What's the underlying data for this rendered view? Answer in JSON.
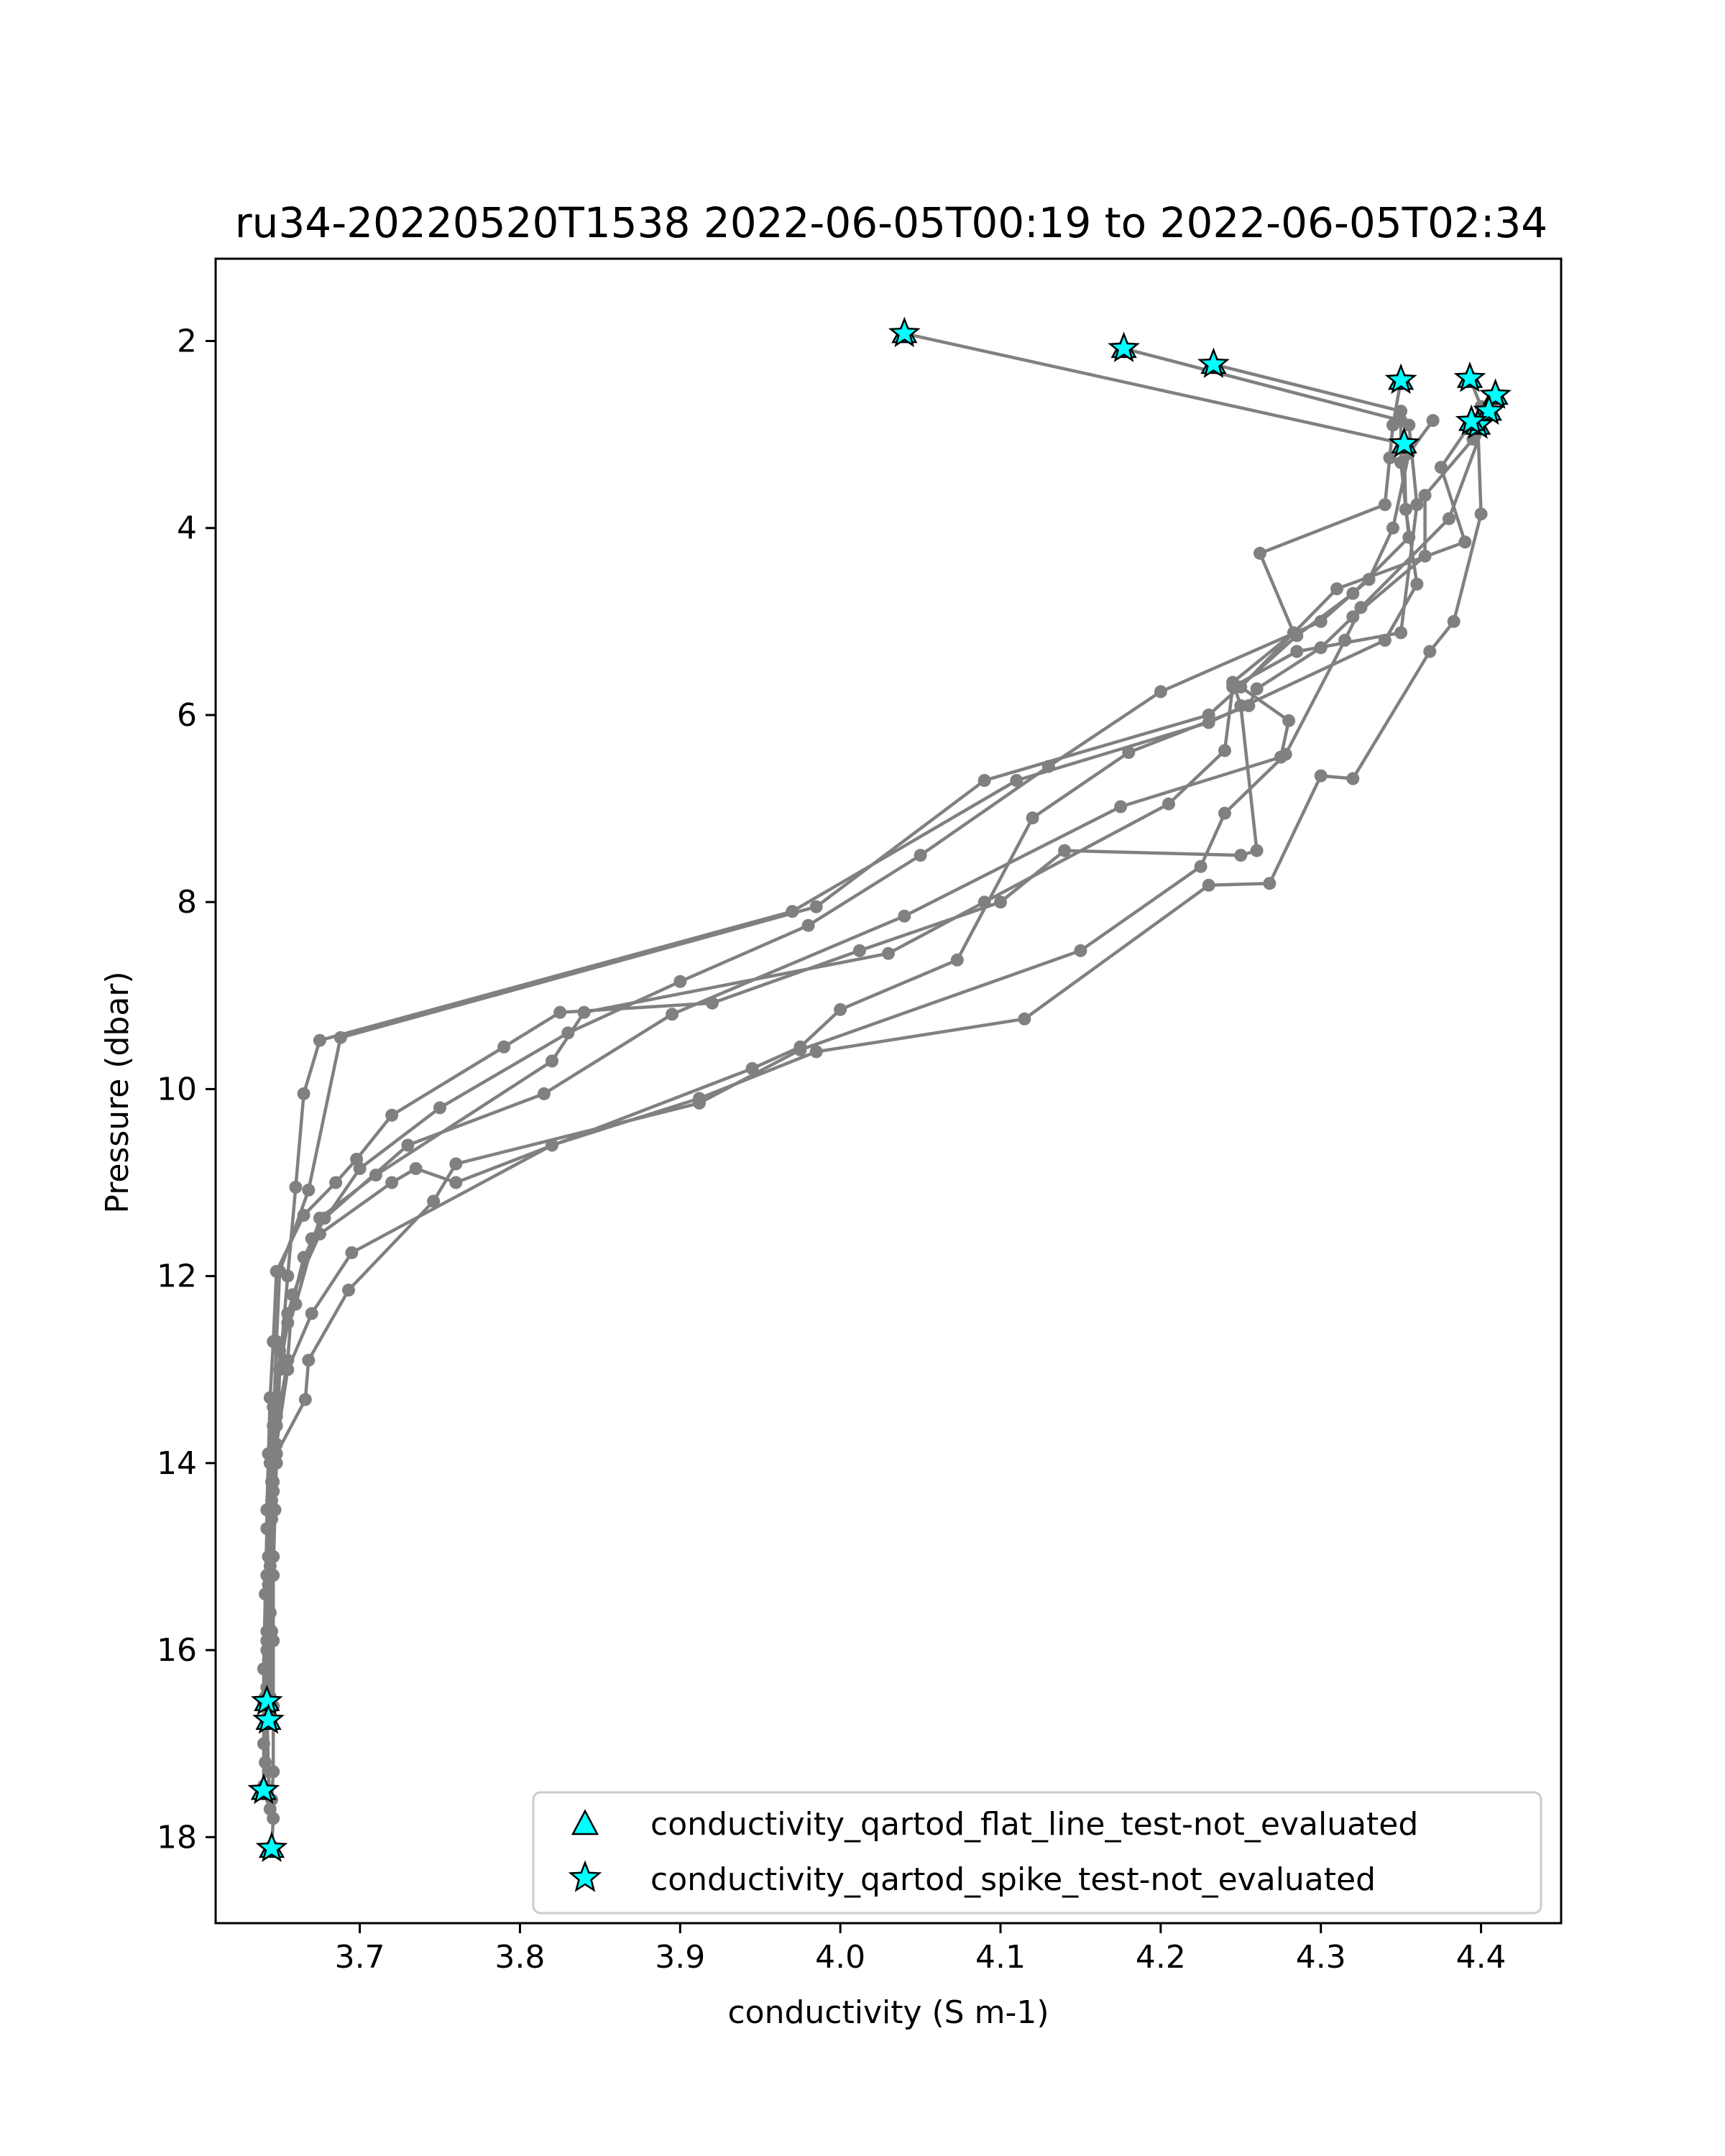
{
  "chart_data": {
    "type": "line",
    "title": "ru34-20220520T1538 2022-06-05T00:19 to 2022-06-05T02:34",
    "xlabel": "conductivity (S m-1)",
    "ylabel": "Pressure (dbar)",
    "xlim": [
      3.61,
      4.45
    ],
    "ylim": [
      18.92,
      1.12
    ],
    "y_inverted": true,
    "grid": false,
    "legend_position": "lower-right",
    "xticks": [
      3.7,
      3.8,
      3.9,
      4.0,
      4.1,
      4.2,
      4.3,
      4.4
    ],
    "xtick_labels": [
      "3.7",
      "3.8",
      "3.9",
      "4.0",
      "4.1",
      "4.2",
      "4.3",
      "4.4"
    ],
    "yticks": [
      2,
      4,
      6,
      8,
      10,
      12,
      14,
      16,
      18
    ],
    "ytick_labels": [
      "2",
      "4",
      "6",
      "8",
      "10",
      "12",
      "14",
      "16",
      "18"
    ],
    "line_color": "#808080",
    "marker_color": "#808080",
    "flag_color": "#00ffff",
    "series": [
      {
        "points": [
          [
            4.04,
            1.92
          ],
          [
            4.352,
            3.1
          ],
          [
            4.353,
            3.8
          ],
          [
            4.36,
            4.6
          ],
          [
            4.34,
            5.2
          ],
          [
            4.23,
            6.08
          ],
          [
            4.11,
            6.7
          ],
          [
            3.97,
            8.1
          ],
          [
            3.675,
            9.48
          ],
          [
            3.665,
            10.05
          ],
          [
            3.66,
            11.05
          ],
          [
            3.655,
            12.0
          ],
          [
            3.65,
            13.0
          ],
          [
            3.648,
            14.0
          ],
          [
            3.646,
            15.0
          ],
          [
            3.645,
            15.8
          ],
          [
            3.644,
            16.5
          ],
          [
            3.644,
            16.75
          ]
        ]
      },
      {
        "points": [
          [
            4.177,
            2.08
          ],
          [
            4.35,
            2.85
          ],
          [
            4.35,
            3.3
          ],
          [
            4.355,
            4.1
          ],
          [
            4.32,
            4.7
          ],
          [
            4.285,
            5.15
          ],
          [
            4.23,
            6.0
          ],
          [
            4.09,
            6.7
          ],
          [
            3.985,
            8.05
          ],
          [
            3.688,
            9.45
          ],
          [
            3.668,
            11.08
          ],
          [
            3.65,
            11.95
          ],
          [
            3.648,
            12.7
          ],
          [
            3.646,
            13.6
          ],
          [
            3.645,
            14.4
          ],
          [
            3.644,
            15.1
          ],
          [
            3.643,
            15.8
          ],
          [
            3.643,
            16.6
          ]
        ]
      },
      {
        "points": [
          [
            4.233,
            2.25
          ],
          [
            4.35,
            2.75
          ],
          [
            4.355,
            2.9
          ],
          [
            4.36,
            3.75
          ],
          [
            4.35,
            5.12
          ],
          [
            4.285,
            5.32
          ],
          [
            4.245,
            5.7
          ],
          [
            4.24,
            6.38
          ],
          [
            4.205,
            6.95
          ],
          [
            4.09,
            8.0
          ],
          [
            4.03,
            8.55
          ],
          [
            3.84,
            9.18
          ],
          [
            3.82,
            9.7
          ],
          [
            3.71,
            10.92
          ],
          [
            3.675,
            11.38
          ],
          [
            3.66,
            12.3
          ],
          [
            3.65,
            12.8
          ],
          [
            3.648,
            13.5
          ],
          [
            3.646,
            14.2
          ],
          [
            3.644,
            15.0
          ],
          [
            3.644,
            15.6
          ],
          [
            3.642,
            16.4
          ]
        ]
      },
      {
        "points": [
          [
            4.35,
            2.42
          ],
          [
            4.345,
            2.9
          ],
          [
            4.343,
            3.25
          ],
          [
            4.34,
            3.75
          ],
          [
            4.262,
            4.27
          ],
          [
            4.283,
            5.12
          ],
          [
            4.245,
            5.65
          ],
          [
            4.25,
            5.9
          ],
          [
            4.26,
            7.45
          ],
          [
            4.25,
            7.5
          ],
          [
            4.14,
            7.45
          ],
          [
            4.1,
            8.0
          ],
          [
            4.012,
            8.52
          ],
          [
            3.92,
            9.08
          ],
          [
            3.825,
            9.18
          ],
          [
            3.79,
            9.55
          ],
          [
            3.72,
            10.28
          ],
          [
            3.698,
            10.75
          ],
          [
            3.685,
            11.0
          ],
          [
            3.665,
            11.35
          ],
          [
            3.648,
            11.95
          ],
          [
            3.646,
            12.7
          ],
          [
            3.644,
            13.3
          ],
          [
            3.643,
            13.9
          ],
          [
            3.642,
            14.5
          ],
          [
            3.642,
            15.2
          ],
          [
            3.642,
            15.9
          ],
          [
            3.64,
            16.55
          ]
        ]
      },
      {
        "points": [
          [
            4.393,
            2.4
          ],
          [
            4.4,
            2.7
          ],
          [
            4.395,
            2.85
          ],
          [
            4.375,
            3.35
          ],
          [
            4.39,
            4.15
          ],
          [
            4.31,
            4.65
          ],
          [
            4.25,
            5.7
          ],
          [
            4.28,
            6.06
          ],
          [
            4.275,
            6.45
          ],
          [
            4.175,
            6.98
          ],
          [
            4.04,
            8.15
          ],
          [
            3.895,
            9.2
          ],
          [
            3.815,
            10.05
          ],
          [
            3.73,
            10.6
          ],
          [
            3.678,
            11.38
          ],
          [
            3.665,
            11.8
          ],
          [
            3.655,
            12.5
          ],
          [
            3.646,
            13.4
          ],
          [
            3.644,
            14.0
          ],
          [
            3.642,
            14.7
          ],
          [
            3.641,
            15.4
          ],
          [
            3.64,
            16.2
          ],
          [
            3.64,
            17.0
          ],
          [
            3.64,
            17.5
          ]
        ]
      },
      {
        "points": [
          [
            4.409,
            2.58
          ],
          [
            4.395,
            3.05
          ],
          [
            4.365,
            3.65
          ],
          [
            4.365,
            4.3
          ],
          [
            4.32,
            4.95
          ],
          [
            4.3,
            5.28
          ],
          [
            4.26,
            5.72
          ],
          [
            4.255,
            5.9
          ],
          [
            4.18,
            6.4
          ],
          [
            4.12,
            7.1
          ],
          [
            4.073,
            8.62
          ],
          [
            4.0,
            9.15
          ],
          [
            3.975,
            9.55
          ],
          [
            3.945,
            9.78
          ],
          [
            3.76,
            11.0
          ],
          [
            3.735,
            10.85
          ],
          [
            3.72,
            11.0
          ],
          [
            3.675,
            11.55
          ],
          [
            3.658,
            12.2
          ],
          [
            3.655,
            12.9
          ],
          [
            3.648,
            13.6
          ],
          [
            3.646,
            14.3
          ],
          [
            3.645,
            15.0
          ],
          [
            3.644,
            15.6
          ],
          [
            3.643,
            16.1
          ]
        ]
      },
      {
        "points": [
          [
            4.405,
            2.75
          ],
          [
            4.38,
            3.9
          ],
          [
            4.325,
            4.85
          ],
          [
            4.315,
            5.2
          ],
          [
            4.278,
            6.42
          ],
          [
            4.24,
            7.05
          ],
          [
            4.225,
            7.62
          ],
          [
            4.15,
            8.52
          ],
          [
            3.975,
            9.58
          ],
          [
            3.912,
            10.15
          ],
          [
            3.76,
            10.8
          ],
          [
            3.746,
            11.2
          ],
          [
            3.693,
            12.15
          ],
          [
            3.668,
            12.9
          ],
          [
            3.666,
            13.32
          ],
          [
            3.648,
            13.9
          ],
          [
            3.645,
            14.6
          ],
          [
            3.643,
            15.3
          ],
          [
            3.642,
            16.0
          ],
          [
            3.642,
            16.6
          ],
          [
            3.643,
            17.3
          ],
          [
            3.644,
            17.7
          ]
        ]
      },
      {
        "points": [
          [
            4.398,
            2.9
          ],
          [
            4.4,
            3.85
          ],
          [
            4.383,
            5.0
          ],
          [
            4.368,
            5.32
          ],
          [
            4.32,
            6.68
          ],
          [
            4.3,
            6.65
          ],
          [
            4.268,
            7.8
          ],
          [
            4.23,
            7.82
          ],
          [
            4.115,
            9.25
          ],
          [
            3.985,
            9.6
          ],
          [
            3.912,
            10.1
          ],
          [
            3.82,
            10.6
          ],
          [
            3.695,
            11.75
          ],
          [
            3.67,
            12.4
          ],
          [
            3.655,
            13.0
          ],
          [
            3.648,
            13.8
          ],
          [
            3.647,
            14.5
          ],
          [
            3.646,
            15.2
          ],
          [
            3.646,
            15.9
          ],
          [
            3.646,
            16.6
          ],
          [
            3.646,
            17.3
          ],
          [
            3.645,
            17.6
          ],
          [
            3.646,
            17.8
          ],
          [
            3.645,
            18.1
          ]
        ]
      },
      {
        "points": [
          [
            4.37,
            2.85
          ],
          [
            4.355,
            3.2
          ],
          [
            4.345,
            4.0
          ],
          [
            4.33,
            4.55
          ],
          [
            4.3,
            5.0
          ],
          [
            4.2,
            5.75
          ],
          [
            4.13,
            6.55
          ],
          [
            4.05,
            7.5
          ],
          [
            3.98,
            8.25
          ],
          [
            3.9,
            8.85
          ],
          [
            3.83,
            9.4
          ],
          [
            3.75,
            10.2
          ],
          [
            3.7,
            10.85
          ],
          [
            3.67,
            11.6
          ],
          [
            3.655,
            12.4
          ],
          [
            3.648,
            13.3
          ],
          [
            3.645,
            14.2
          ],
          [
            3.643,
            15.0
          ],
          [
            3.642,
            15.8
          ],
          [
            3.641,
            16.5
          ],
          [
            3.641,
            17.2
          ],
          [
            3.64,
            17.45
          ]
        ]
      }
    ],
    "legend": [
      "conductivity_qartod_flat_line_test-not_evaluated",
      "conductivity_qartod_spike_test-not_evaluated"
    ],
    "flagged_points": [
      [
        4.04,
        1.92
      ],
      [
        4.177,
        2.08
      ],
      [
        4.233,
        2.25
      ],
      [
        4.35,
        2.42
      ],
      [
        4.393,
        2.4
      ],
      [
        4.409,
        2.58
      ],
      [
        4.405,
        2.75
      ],
      [
        4.398,
        2.9
      ],
      [
        4.394,
        2.86
      ],
      [
        4.352,
        3.1
      ],
      [
        3.642,
        16.55
      ],
      [
        3.643,
        16.75
      ],
      [
        3.64,
        17.5
      ],
      [
        3.645,
        18.12
      ]
    ]
  }
}
